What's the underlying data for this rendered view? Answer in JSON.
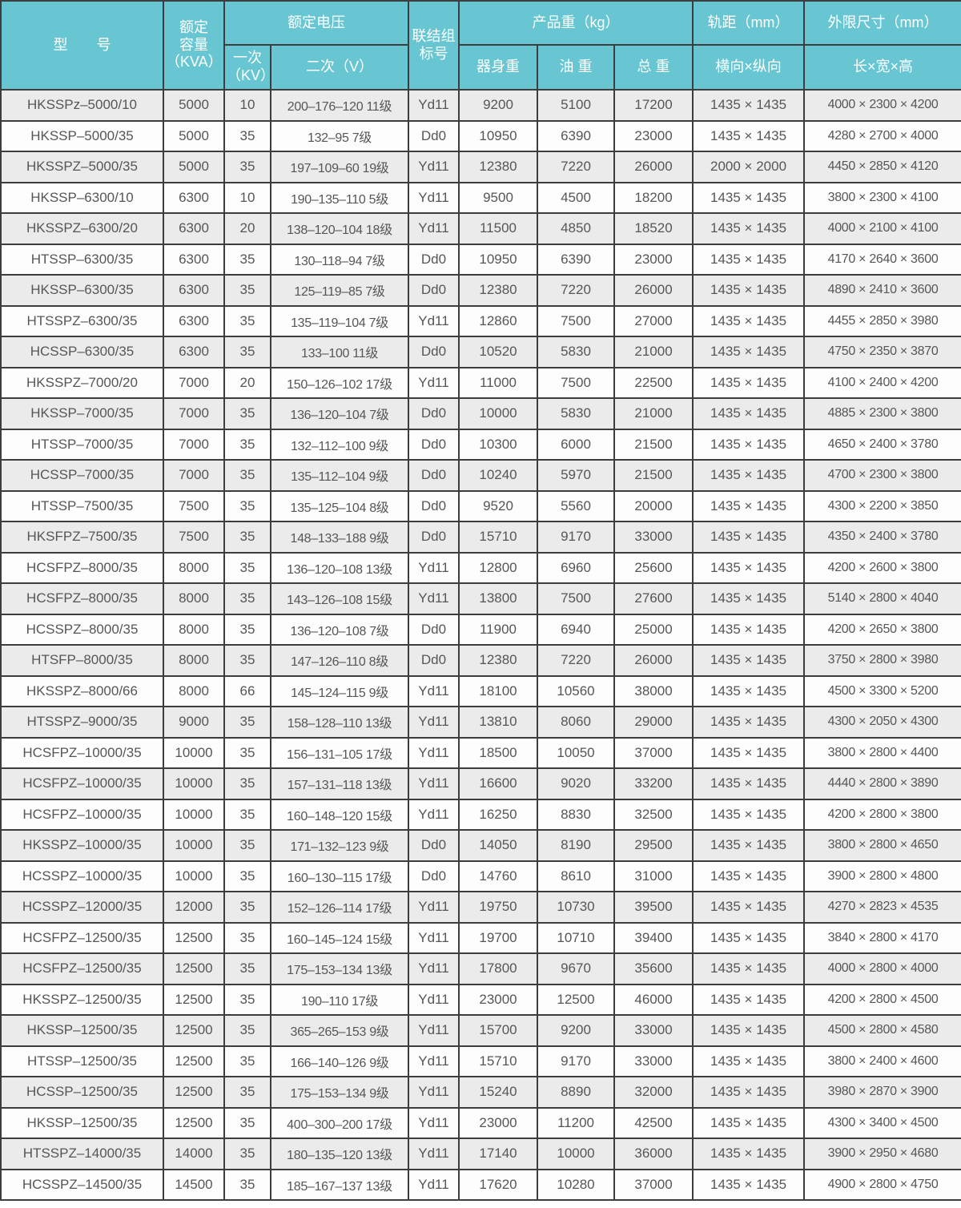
{
  "colors": {
    "header_bg": "#68c6d3",
    "header_text": "#ffffff",
    "row_odd_bg": "#ebebeb",
    "row_even_bg": "#fdfdfd",
    "grid_border": "#3d3d3d",
    "cell_text": "#565656"
  },
  "table": {
    "header": {
      "model": "型　　号",
      "capacity": [
        "额定",
        "容量",
        "（KVA）"
      ],
      "voltage_group": "额定电压",
      "primary": [
        "一次",
        "（KV）"
      ],
      "secondary": "二次（V）",
      "connection": [
        "联结组",
        "标号"
      ],
      "weight_group": "产品重（kg）",
      "body_weight": "器身重",
      "oil_weight": "油 重",
      "total_weight": "总 重",
      "gauge_group": "轨距（mm）",
      "gauge_sub": "横向×纵向",
      "dims_group": "外限尺寸（mm）",
      "dims_sub": "长×宽×高"
    },
    "rows": [
      [
        "HKSSPz–5000/10",
        "5000",
        "10",
        "200–176–120 11级",
        "Yd11",
        "9200",
        "5100",
        "17200",
        "1435 × 1435",
        "4000 × 2300 × 4200"
      ],
      [
        "HKSSP–5000/35",
        "5000",
        "35",
        "132–95 7级",
        "Dd0",
        "10950",
        "6390",
        "23000",
        "1435 × 1435",
        "4280 × 2700 × 4000"
      ],
      [
        "HKSSPZ–5000/35",
        "5000",
        "35",
        "197–109–60 19级",
        "Yd11",
        "12380",
        "7220",
        "26000",
        "2000 × 2000",
        "4450 × 2850 × 4120"
      ],
      [
        "HKSSP–6300/10",
        "6300",
        "10",
        "190–135–110 5级",
        "Yd11",
        "9500",
        "4500",
        "18200",
        "1435 × 1435",
        "3800 × 2300 × 4100"
      ],
      [
        "HKSSPZ–6300/20",
        "6300",
        "20",
        "138–120–104 18级",
        "Yd11",
        "11500",
        "4850",
        "18520",
        "1435 × 1435",
        "4000 × 2100 × 4100"
      ],
      [
        "HTSSP–6300/35",
        "6300",
        "35",
        "130–118–94 7级",
        "Dd0",
        "10950",
        "6390",
        "23000",
        "1435 × 1435",
        "4170 × 2640 × 3600"
      ],
      [
        "HKSSP–6300/35",
        "6300",
        "35",
        "125–119–85 7级",
        "Dd0",
        "12380",
        "7220",
        "26000",
        "1435 × 1435",
        "4890 × 2410 × 3600"
      ],
      [
        "HTSSPZ–6300/35",
        "6300",
        "35",
        "135–119–104 7级",
        "Yd11",
        "12860",
        "7500",
        "27000",
        "1435 × 1435",
        "4455 × 2850 × 3980"
      ],
      [
        "HCSSP–6300/35",
        "6300",
        "35",
        "133–100 11级",
        "Dd0",
        "10520",
        "5830",
        "21000",
        "1435 × 1435",
        "4750 × 2350 × 3870"
      ],
      [
        "HKSSPZ–7000/20",
        "7000",
        "20",
        "150–126–102 17级",
        "Yd11",
        "11000",
        "7500",
        "22500",
        "1435 × 1435",
        "4100 × 2400 × 4200"
      ],
      [
        "HKSSP–7000/35",
        "7000",
        "35",
        "136–120–104 7级",
        "Dd0",
        "10000",
        "5830",
        "21000",
        "1435 × 1435",
        "4885 × 2300 × 3800"
      ],
      [
        "HTSSP–7000/35",
        "7000",
        "35",
        "132–112–100 9级",
        "Dd0",
        "10300",
        "6000",
        "21500",
        "1435 × 1435",
        "4650 × 2400 × 3780"
      ],
      [
        "HCSSP–7000/35",
        "7000",
        "35",
        "135–112–104 9级",
        "Dd0",
        "10240",
        "5970",
        "21500",
        "1435 × 1435",
        "4700 × 2300 × 3800"
      ],
      [
        "HTSSP–7500/35",
        "7500",
        "35",
        "135–125–104 8级",
        "Dd0",
        "9520",
        "5560",
        "20000",
        "1435 × 1435",
        "4300 × 2200 × 3850"
      ],
      [
        "HKSFPZ–7500/35",
        "7500",
        "35",
        "148–133–188 9级",
        "Dd0",
        "15710",
        "9170",
        "33000",
        "1435 × 1435",
        "4350 × 2400 × 3780"
      ],
      [
        "HCSFPZ–8000/35",
        "8000",
        "35",
        "136–120–108 13级",
        "Yd11",
        "12800",
        "6960",
        "25600",
        "1435 × 1435",
        "4200 × 2600 × 3800"
      ],
      [
        "HCSFPZ–8000/35",
        "8000",
        "35",
        "143–126–108 15级",
        "Yd11",
        "13800",
        "7500",
        "27600",
        "1435 × 1435",
        "5140 × 2800 × 4040"
      ],
      [
        "HCSSPZ–8000/35",
        "8000",
        "35",
        "136–120–108 7级",
        "Dd0",
        "11900",
        "6940",
        "25000",
        "1435 × 1435",
        "4200 × 2650 × 3800"
      ],
      [
        "HTSFP–8000/35",
        "8000",
        "35",
        "147–126–110 8级",
        "Dd0",
        "12380",
        "7220",
        "26000",
        "1435 × 1435",
        "3750 × 2800 × 3980"
      ],
      [
        "HKSSPZ–8000/66",
        "8000",
        "66",
        "145–124–115 9级",
        "Yd11",
        "18100",
        "10560",
        "38000",
        "1435 × 1435",
        "4500 × 3300 × 5200"
      ],
      [
        "HTSSPZ–9000/35",
        "9000",
        "35",
        "158–128–110 13级",
        "Yd11",
        "13810",
        "8060",
        "29000",
        "1435 × 1435",
        "4300 × 2050 × 4300"
      ],
      [
        "HCSFPZ–10000/35",
        "10000",
        "35",
        "156–131–105 17级",
        "Yd11",
        "18500",
        "10050",
        "37000",
        "1435 × 1435",
        "3800 × 2800 × 4400"
      ],
      [
        "HCSFPZ–10000/35",
        "10000",
        "35",
        "157–131–118 13级",
        "Yd11",
        "16600",
        "9020",
        "33200",
        "1435 × 1435",
        "4440 × 2800 × 3890"
      ],
      [
        "HCSFPZ–10000/35",
        "10000",
        "35",
        "160–148–120 15级",
        "Yd11",
        "16250",
        "8830",
        "32500",
        "1435 × 1435",
        "4200 × 2800 × 3800"
      ],
      [
        "HKSSPZ–10000/35",
        "10000",
        "35",
        "171–132–123 9级",
        "Dd0",
        "14050",
        "8190",
        "29500",
        "1435 × 1435",
        "3800 × 2800 × 4650"
      ],
      [
        "HCSSPZ–10000/35",
        "10000",
        "35",
        "160–130–115 17级",
        "Dd0",
        "14760",
        "8610",
        "31000",
        "1435 × 1435",
        "3900 × 2800 × 4800"
      ],
      [
        "HCSSPZ–12000/35",
        "12000",
        "35",
        "152–126–114 17级",
        "Yd11",
        "19750",
        "10730",
        "39500",
        "1435 × 1435",
        "4270 × 2823 × 4535"
      ],
      [
        "HCSFPZ–12500/35",
        "12500",
        "35",
        "160–145–124 15级",
        "Yd11",
        "19700",
        "10710",
        "39400",
        "1435 × 1435",
        "3840 × 2800 × 4170"
      ],
      [
        "HCSFPZ–12500/35",
        "12500",
        "35",
        "175–153–134 13级",
        "Yd11",
        "17800",
        "9670",
        "35600",
        "1435 × 1435",
        "4000 × 2800 × 4000"
      ],
      [
        "HKSSPZ–12500/35",
        "12500",
        "35",
        "190–110 17级",
        "Yd11",
        "23000",
        "12500",
        "46000",
        "1435 × 1435",
        "4200 × 2800 × 4500"
      ],
      [
        "HKSSP–12500/35",
        "12500",
        "35",
        "365–265–153 9级",
        "Yd11",
        "15700",
        "9200",
        "33000",
        "1435 × 1435",
        "4500 × 2800 × 4580"
      ],
      [
        "HTSSP–12500/35",
        "12500",
        "35",
        "166–140–126 9级",
        "Yd11",
        "15710",
        "9170",
        "33000",
        "1435 × 1435",
        "3800 × 2400 × 4600"
      ],
      [
        "HCSSP–12500/35",
        "12500",
        "35",
        "175–153–134 9级",
        "Yd11",
        "15240",
        "8890",
        "32000",
        "1435 × 1435",
        "3980 × 2870 × 3900"
      ],
      [
        "HKSSP–12500/35",
        "12500",
        "35",
        "400–300–200 17级",
        "Yd11",
        "23000",
        "11200",
        "42500",
        "1435 × 1435",
        "4300 × 3400 × 4500"
      ],
      [
        "HTSSPZ–14000/35",
        "14000",
        "35",
        "180–135–120 13级",
        "Yd11",
        "17140",
        "10000",
        "36000",
        "1435 × 1435",
        "3900 × 2950 × 4680"
      ],
      [
        "HCSSPZ–14500/35",
        "14500",
        "35",
        "185–167–137 13级",
        "Yd11",
        "17620",
        "10280",
        "37000",
        "1435 × 1435",
        "4900 × 2800 × 4750"
      ]
    ]
  }
}
